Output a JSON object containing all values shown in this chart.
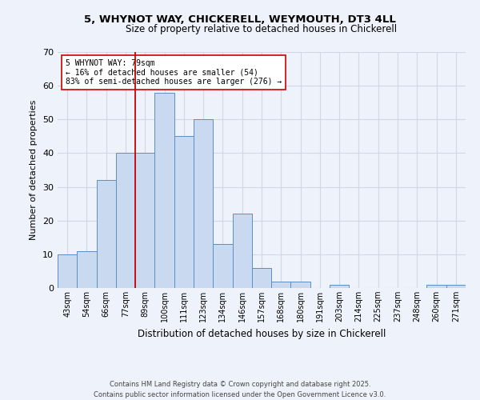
{
  "title_line1": "5, WHYNOT WAY, CHICKERELL, WEYMOUTH, DT3 4LL",
  "title_line2": "Size of property relative to detached houses in Chickerell",
  "xlabel": "Distribution of detached houses by size in Chickerell",
  "ylabel": "Number of detached properties",
  "categories": [
    "43sqm",
    "54sqm",
    "66sqm",
    "77sqm",
    "89sqm",
    "100sqm",
    "111sqm",
    "123sqm",
    "134sqm",
    "146sqm",
    "157sqm",
    "168sqm",
    "180sqm",
    "191sqm",
    "203sqm",
    "214sqm",
    "225sqm",
    "237sqm",
    "248sqm",
    "260sqm",
    "271sqm"
  ],
  "values": [
    10,
    11,
    32,
    40,
    40,
    58,
    45,
    50,
    13,
    22,
    6,
    2,
    2,
    0,
    1,
    0,
    0,
    0,
    0,
    1,
    1
  ],
  "bar_color": "#c9d9f0",
  "bar_edge_color": "#5b8ec4",
  "grid_color": "#d0d8e8",
  "background_color": "#eef2fa",
  "vline_x": 3.5,
  "vline_color": "#cc0000",
  "annotation_text": "5 WHYNOT WAY: 79sqm\n← 16% of detached houses are smaller (54)\n83% of semi-detached houses are larger (276) →",
  "annotation_box_color": "#ffffff",
  "annotation_box_edge": "#cc0000",
  "footer_text": "Contains HM Land Registry data © Crown copyright and database right 2025.\nContains public sector information licensed under the Open Government Licence v3.0.",
  "ylim": [
    0,
    70
  ],
  "yticks": [
    0,
    10,
    20,
    30,
    40,
    50,
    60,
    70
  ]
}
